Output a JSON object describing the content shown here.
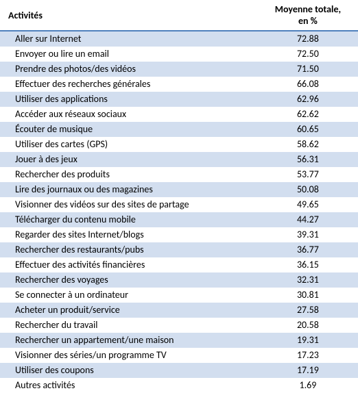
{
  "type": "table",
  "colors": {
    "header_border": "#4f81bd",
    "row_even_bg": "#d2deef",
    "row_odd_bg": "#ffffff",
    "text": "#000000"
  },
  "header": {
    "activites": "Activités",
    "moyenne_line1": "Moyenne totale,",
    "moyenne_line2": "en %"
  },
  "rows": [
    {
      "label": "Aller sur Internet",
      "value": "72.88"
    },
    {
      "label": "Envoyer ou lire un email",
      "value": "72.50"
    },
    {
      "label": "Prendre des photos/des vidéos",
      "value": "71.50"
    },
    {
      "label": "Effectuer des recherches générales",
      "value": "66.08"
    },
    {
      "label": "Utiliser des applications",
      "value": "62.96"
    },
    {
      "label": "Accéder aux réseaux sociaux",
      "value": "62.62"
    },
    {
      "label": "Écouter de musique",
      "value": "60.65"
    },
    {
      "label": "Utiliser des cartes (GPS)",
      "value": "58.62"
    },
    {
      "label": "Jouer à des jeux",
      "value": "56.31"
    },
    {
      "label": "Rechercher des produits",
      "value": "53.77"
    },
    {
      "label": "Lire des journaux ou des magazines",
      "value": "50.08"
    },
    {
      "label": "Visionner des vidéos sur des sites de partage",
      "value": "49.65"
    },
    {
      "label": "Télécharger du contenu mobile",
      "value": "44.27"
    },
    {
      "label": "Regarder des sites Internet/blogs",
      "value": "39.31"
    },
    {
      "label": "Rechercher des restaurants/pubs",
      "value": "36.77"
    },
    {
      "label": "Effectuer des activités financières",
      "value": "36.15"
    },
    {
      "label": "Rechercher des voyages",
      "value": "32.31"
    },
    {
      "label": "Se connecter à un ordinateur",
      "value": "30.81"
    },
    {
      "label": "Acheter un produit/service",
      "value": "27.58"
    },
    {
      "label": "Rechercher du travail",
      "value": "20.58"
    },
    {
      "label": "Rechercher un appartement/une maison",
      "value": "19.31"
    },
    {
      "label": "Visionner des séries/un programme TV",
      "value": "17.23"
    },
    {
      "label": "Utiliser des coupons",
      "value": "17.19"
    },
    {
      "label": "Autres activités",
      "value": "1.69"
    }
  ]
}
